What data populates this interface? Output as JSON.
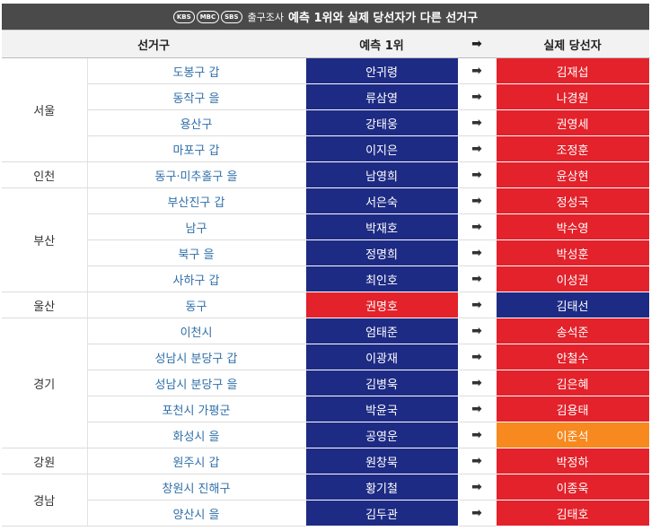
{
  "header": {
    "logos": [
      "KBS",
      "MBC",
      "SBS"
    ],
    "prefix": "출구조사",
    "title": "예측 1위와 실제 당선자가 다른 선거구"
  },
  "columns": {
    "district": "선거구",
    "predicted": "예측 1위",
    "arrow": "➡",
    "actual": "실제 당선자"
  },
  "colors": {
    "blue": "#1e2b84",
    "red": "#e3222b",
    "orange": "#f7891f"
  },
  "regions": [
    {
      "name": "서울",
      "rows": [
        {
          "district": "도봉구 갑",
          "predicted": "안귀령",
          "pc": "blue",
          "actual": "김재섭",
          "ac": "red"
        },
        {
          "district": "동작구 을",
          "predicted": "류삼영",
          "pc": "blue",
          "actual": "나경원",
          "ac": "red"
        },
        {
          "district": "용산구",
          "predicted": "강태웅",
          "pc": "blue",
          "actual": "권영세",
          "ac": "red"
        },
        {
          "district": "마포구 갑",
          "predicted": "이지은",
          "pc": "blue",
          "actual": "조정훈",
          "ac": "red"
        }
      ]
    },
    {
      "name": "인천",
      "rows": [
        {
          "district": "동구·미추홀구 을",
          "predicted": "남영희",
          "pc": "blue",
          "actual": "윤상현",
          "ac": "red"
        }
      ]
    },
    {
      "name": "부산",
      "rows": [
        {
          "district": "부산진구 갑",
          "predicted": "서은숙",
          "pc": "blue",
          "actual": "정성국",
          "ac": "red"
        },
        {
          "district": "남구",
          "predicted": "박재호",
          "pc": "blue",
          "actual": "박수영",
          "ac": "red"
        },
        {
          "district": "북구 을",
          "predicted": "정명희",
          "pc": "blue",
          "actual": "박성훈",
          "ac": "red"
        },
        {
          "district": "사하구 갑",
          "predicted": "최인호",
          "pc": "blue",
          "actual": "이성권",
          "ac": "red"
        }
      ]
    },
    {
      "name": "울산",
      "rows": [
        {
          "district": "동구",
          "predicted": "권명호",
          "pc": "red",
          "actual": "김태선",
          "ac": "blue"
        }
      ]
    },
    {
      "name": "경기",
      "rows": [
        {
          "district": "이천시",
          "predicted": "엄태준",
          "pc": "blue",
          "actual": "송석준",
          "ac": "red"
        },
        {
          "district": "성남시 분당구 갑",
          "predicted": "이광재",
          "pc": "blue",
          "actual": "안철수",
          "ac": "red"
        },
        {
          "district": "성남시 분당구 을",
          "predicted": "김병욱",
          "pc": "blue",
          "actual": "김은혜",
          "ac": "red"
        },
        {
          "district": "포천시 가평군",
          "predicted": "박윤국",
          "pc": "blue",
          "actual": "김용태",
          "ac": "red"
        },
        {
          "district": "화성시 을",
          "predicted": "공영운",
          "pc": "blue",
          "actual": "이준석",
          "ac": "orange"
        }
      ]
    },
    {
      "name": "강원",
      "rows": [
        {
          "district": "원주시 갑",
          "predicted": "원창묵",
          "pc": "blue",
          "actual": "박정하",
          "ac": "red"
        }
      ]
    },
    {
      "name": "경남",
      "rows": [
        {
          "district": "창원시 진해구",
          "predicted": "황기철",
          "pc": "blue",
          "actual": "이종욱",
          "ac": "red"
        },
        {
          "district": "양산시 을",
          "predicted": "김두관",
          "pc": "blue",
          "actual": "김태호",
          "ac": "red"
        }
      ]
    }
  ]
}
